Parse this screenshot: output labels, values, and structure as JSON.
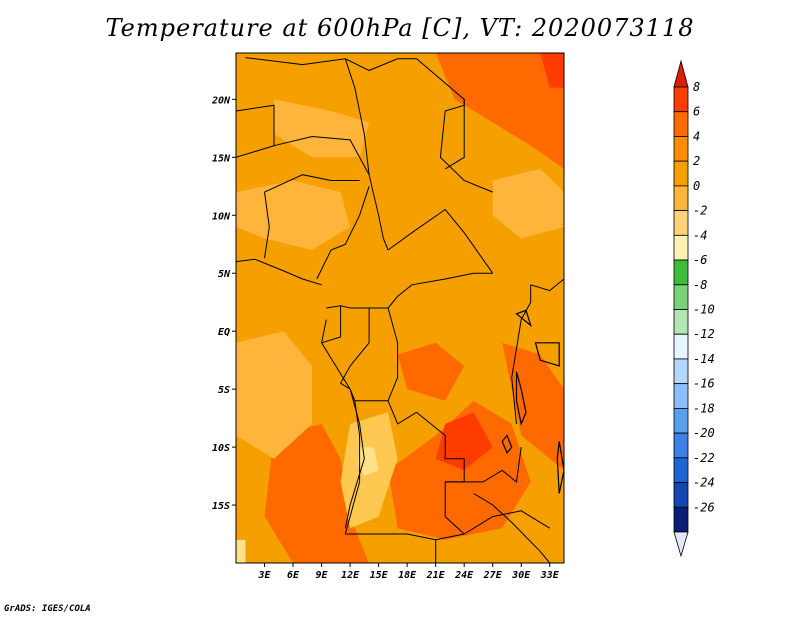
{
  "title": "Temperature at 600hPa [C], VT: 2020073118",
  "credit": "GrADS: IGES/COLA",
  "map": {
    "lon_range": [
      0,
      34.5
    ],
    "lat_range": [
      -20,
      24
    ],
    "x_ticks": [
      {
        "value": 3,
        "label": "3E"
      },
      {
        "value": 6,
        "label": "6E"
      },
      {
        "value": 9,
        "label": "9E"
      },
      {
        "value": 12,
        "label": "12E"
      },
      {
        "value": 15,
        "label": "15E"
      },
      {
        "value": 18,
        "label": "18E"
      },
      {
        "value": 21,
        "label": "21E"
      },
      {
        "value": 24,
        "label": "24E"
      },
      {
        "value": 27,
        "label": "27E"
      },
      {
        "value": 30,
        "label": "30E"
      },
      {
        "value": 33,
        "label": "33E"
      }
    ],
    "y_ticks": [
      {
        "value": 20,
        "label": "20N"
      },
      {
        "value": 15,
        "label": "15N"
      },
      {
        "value": 10,
        "label": "10N"
      },
      {
        "value": 5,
        "label": "5N"
      },
      {
        "value": 0,
        "label": "EQ"
      },
      {
        "value": -5,
        "label": "5S"
      },
      {
        "value": -10,
        "label": "10S"
      },
      {
        "value": -15,
        "label": "15S"
      }
    ],
    "base_color": "#f5a000",
    "regions": [
      {
        "name": "hot-northeast",
        "color": "#ff6a00",
        "points": [
          [
            21,
            24
          ],
          [
            34.5,
            24
          ],
          [
            34.5,
            14
          ],
          [
            31,
            16
          ],
          [
            27,
            18
          ],
          [
            23,
            20
          ]
        ]
      },
      {
        "name": "hot-angola-coast",
        "color": "#ff6a00",
        "points": [
          [
            4,
            -9
          ],
          [
            9,
            -8
          ],
          [
            11,
            -11
          ],
          [
            12,
            -16
          ],
          [
            14,
            -20
          ],
          [
            6,
            -20
          ],
          [
            3,
            -16
          ]
        ]
      },
      {
        "name": "hot-zambia",
        "color": "#ff6a00",
        "points": [
          [
            16,
            -12
          ],
          [
            21,
            -9
          ],
          [
            25,
            -6
          ],
          [
            29,
            -8
          ],
          [
            31,
            -13
          ],
          [
            28,
            -17
          ],
          [
            22,
            -18
          ],
          [
            17,
            -17
          ]
        ]
      },
      {
        "name": "hot-congo",
        "color": "#ff6a00",
        "points": [
          [
            17,
            -2
          ],
          [
            21,
            -1
          ],
          [
            24,
            -3
          ],
          [
            22,
            -6
          ],
          [
            18,
            -5
          ]
        ]
      },
      {
        "name": "hot-east",
        "color": "#ff6a00",
        "points": [
          [
            28,
            -1
          ],
          [
            32,
            -2
          ],
          [
            34.5,
            -5
          ],
          [
            34.5,
            -12
          ],
          [
            30,
            -9
          ]
        ]
      },
      {
        "name": "hottest-core",
        "color": "#ff3c00",
        "points": [
          [
            22,
            -8
          ],
          [
            25,
            -7
          ],
          [
            27,
            -10
          ],
          [
            24,
            -12
          ],
          [
            21,
            -11
          ]
        ]
      },
      {
        "name": "hottest-ne",
        "color": "#ff3c00",
        "points": [
          [
            32,
            24
          ],
          [
            34.5,
            24
          ],
          [
            34.5,
            21
          ],
          [
            33,
            21
          ]
        ]
      },
      {
        "name": "warm-sahel",
        "color": "#ffb43c",
        "points": [
          [
            4,
            20
          ],
          [
            10,
            19
          ],
          [
            14,
            18
          ],
          [
            13,
            15
          ],
          [
            8,
            15
          ],
          [
            4,
            17
          ]
        ]
      },
      {
        "name": "warm-nigeria",
        "color": "#ffb43c",
        "points": [
          [
            0,
            12
          ],
          [
            6,
            13
          ],
          [
            11,
            12
          ],
          [
            12,
            9
          ],
          [
            8,
            7
          ],
          [
            3,
            8
          ],
          [
            0,
            9
          ]
        ]
      },
      {
        "name": "warm-ocean",
        "color": "#ffb43c",
        "points": [
          [
            0,
            -1
          ],
          [
            5,
            0
          ],
          [
            8,
            -3
          ],
          [
            8,
            -8
          ],
          [
            4,
            -11
          ],
          [
            0,
            -9
          ]
        ]
      },
      {
        "name": "warm-angola",
        "color": "#ffc850",
        "points": [
          [
            12,
            -8
          ],
          [
            16,
            -7
          ],
          [
            17,
            -11
          ],
          [
            15,
            -16
          ],
          [
            12,
            -17
          ],
          [
            11,
            -13
          ]
        ]
      },
      {
        "name": "warm-sudan",
        "color": "#ffb43c",
        "points": [
          [
            27,
            13
          ],
          [
            32,
            14
          ],
          [
            34.5,
            12
          ],
          [
            34.5,
            9
          ],
          [
            30,
            8
          ],
          [
            27,
            10
          ]
        ]
      },
      {
        "name": "coolest-angola",
        "color": "#ffe18c",
        "points": [
          [
            13,
            -10
          ],
          [
            14.5,
            -10
          ],
          [
            15,
            -12
          ],
          [
            13.5,
            -12.5
          ],
          [
            12.8,
            -11.5
          ]
        ]
      },
      {
        "name": "cool-sw-corner",
        "color": "#ffe18c",
        "points": [
          [
            0,
            -18
          ],
          [
            1,
            -18
          ],
          [
            1,
            -20
          ],
          [
            0,
            -20
          ]
        ]
      }
    ],
    "borders": [
      [
        [
          1,
          23.6
        ],
        [
          7,
          23
        ],
        [
          11.5,
          23.5
        ],
        [
          14,
          22.5
        ],
        [
          17,
          23.5
        ],
        [
          19,
          23.5
        ],
        [
          24,
          20
        ],
        [
          24,
          15
        ],
        [
          22,
          14
        ]
      ],
      [
        [
          0,
          19
        ],
        [
          4,
          19.5
        ],
        [
          4,
          16
        ],
        [
          0,
          15
        ]
      ],
      [
        [
          4,
          16
        ],
        [
          8,
          16.8
        ],
        [
          12,
          16.5
        ],
        [
          14,
          13.5
        ]
      ],
      [
        [
          11.5,
          23.5
        ],
        [
          12.5,
          21
        ],
        [
          13.5,
          17
        ],
        [
          14,
          13.5
        ],
        [
          15,
          10
        ],
        [
          15.5,
          8
        ],
        [
          16,
          7
        ]
      ],
      [
        [
          3,
          12
        ],
        [
          3.5,
          9
        ],
        [
          3,
          6.3
        ]
      ],
      [
        [
          3,
          12
        ],
        [
          7,
          13.5
        ],
        [
          10,
          13
        ],
        [
          13,
          13
        ]
      ],
      [
        [
          8.5,
          4.5
        ],
        [
          10,
          7
        ],
        [
          11.5,
          7.5
        ],
        [
          13,
          10
        ],
        [
          14,
          12.5
        ]
      ],
      [
        [
          16,
          7
        ],
        [
          18.5,
          8.5
        ],
        [
          22,
          10.5
        ],
        [
          24,
          8.5
        ],
        [
          27,
          5
        ]
      ],
      [
        [
          24,
          20
        ],
        [
          24,
          19.5
        ],
        [
          22,
          19
        ],
        [
          21.5,
          15
        ],
        [
          24,
          13
        ],
        [
          27,
          12
        ]
      ],
      [
        [
          14,
          2
        ],
        [
          16,
          2
        ],
        [
          17,
          3
        ],
        [
          18.5,
          4
        ],
        [
          22,
          4.5
        ],
        [
          25,
          5
        ],
        [
          27,
          5
        ]
      ],
      [
        [
          9.5,
          2
        ],
        [
          11,
          2.2
        ],
        [
          12,
          2
        ],
        [
          14,
          2
        ]
      ],
      [
        [
          11,
          2.2
        ],
        [
          11,
          -0.5
        ],
        [
          9,
          -1
        ]
      ],
      [
        [
          14,
          2
        ],
        [
          14,
          -1
        ],
        [
          12,
          -3
        ],
        [
          11,
          -4.5
        ],
        [
          12,
          -5
        ]
      ],
      [
        [
          16,
          2
        ],
        [
          17,
          -1
        ],
        [
          17,
          -4
        ],
        [
          16,
          -6
        ]
      ],
      [
        [
          12,
          -5
        ],
        [
          12.5,
          -6
        ],
        [
          16,
          -6
        ],
        [
          17,
          -8
        ],
        [
          19,
          -7
        ],
        [
          22,
          -9
        ]
      ],
      [
        [
          12.5,
          -6
        ],
        [
          13,
          -9
        ],
        [
          13,
          -13
        ],
        [
          12,
          -16
        ],
        [
          11.5,
          -17.5
        ]
      ],
      [
        [
          11.5,
          -17.5
        ],
        [
          14,
          -17.5
        ],
        [
          18,
          -17.5
        ],
        [
          21,
          -18
        ],
        [
          24,
          -17.5
        ]
      ],
      [
        [
          22,
          -9
        ],
        [
          22,
          -11
        ],
        [
          24,
          -11
        ],
        [
          24,
          -13
        ],
        [
          22,
          -13
        ],
        [
          22,
          -16
        ],
        [
          24,
          -17.5
        ]
      ],
      [
        [
          22,
          -13
        ],
        [
          26,
          -13
        ],
        [
          28,
          -12
        ],
        [
          29.5,
          -13
        ],
        [
          30,
          -10
        ]
      ],
      [
        [
          29.5,
          -8
        ],
        [
          29,
          -4
        ],
        [
          29.5,
          -1.5
        ],
        [
          30,
          1
        ],
        [
          31,
          2.5
        ],
        [
          31,
          4
        ]
      ],
      [
        [
          31,
          4
        ],
        [
          33,
          3.5
        ],
        [
          34.5,
          4.5
        ]
      ],
      [
        [
          24,
          -17.5
        ],
        [
          27,
          -16
        ],
        [
          30,
          -15.5
        ],
        [
          33,
          -17
        ]
      ],
      [
        [
          25,
          -14
        ],
        [
          27,
          -15
        ],
        [
          29,
          -16.5
        ],
        [
          32,
          -19
        ],
        [
          33,
          -20
        ]
      ],
      [
        [
          21,
          -18
        ],
        [
          21,
          -20
        ]
      ]
    ],
    "lakes": [
      [
        [
          29.5,
          -3.5
        ],
        [
          30,
          -5
        ],
        [
          30.5,
          -7
        ],
        [
          30,
          -8
        ],
        [
          29.5,
          -6
        ]
      ],
      [
        [
          31.5,
          -1
        ],
        [
          34,
          -1
        ],
        [
          34,
          -3
        ],
        [
          32,
          -2.5
        ]
      ],
      [
        [
          34,
          -9.5
        ],
        [
          34.5,
          -12
        ],
        [
          34,
          -14
        ],
        [
          33.8,
          -11
        ]
      ],
      [
        [
          28.5,
          -9
        ],
        [
          29,
          -10
        ],
        [
          28.5,
          -10.5
        ],
        [
          28,
          -9.5
        ]
      ],
      [
        [
          29.5,
          1.5
        ],
        [
          31,
          0.5
        ],
        [
          30.5,
          1.8
        ]
      ]
    ],
    "coast": [
      [
        [
          0,
          6
        ],
        [
          2,
          6.2
        ],
        [
          5,
          5.2
        ],
        [
          7,
          4.5
        ],
        [
          9,
          4
        ]
      ],
      [
        [
          9.5,
          1
        ],
        [
          9,
          -1
        ],
        [
          10.5,
          -3
        ],
        [
          12,
          -5
        ],
        [
          13,
          -8
        ],
        [
          13.5,
          -11
        ],
        [
          12,
          -15
        ],
        [
          11.5,
          -17
        ]
      ]
    ]
  },
  "colorbar": {
    "levels": [
      "8",
      "6",
      "4",
      "2",
      "0",
      "-2",
      "-4",
      "-6",
      "-8",
      "-10",
      "-12",
      "-14",
      "-16",
      "-18",
      "-20",
      "-22",
      "-24",
      "-26"
    ],
    "colors": [
      "#ff3c00",
      "#ff6a00",
      "#ff8c00",
      "#f5a000",
      "#ffb43c",
      "#ffd278",
      "#fff0b4",
      "#3cbe3c",
      "#78d278",
      "#b4e6b4",
      "#e6f5ff",
      "#b4d7ff",
      "#8cbeff",
      "#5aa0f0",
      "#3c82e6",
      "#1e64d2",
      "#1446b4",
      "#0a1e78"
    ],
    "top_arrow_color": "#dc1e00",
    "bottom_arrow_color": "#e6e6fa"
  }
}
